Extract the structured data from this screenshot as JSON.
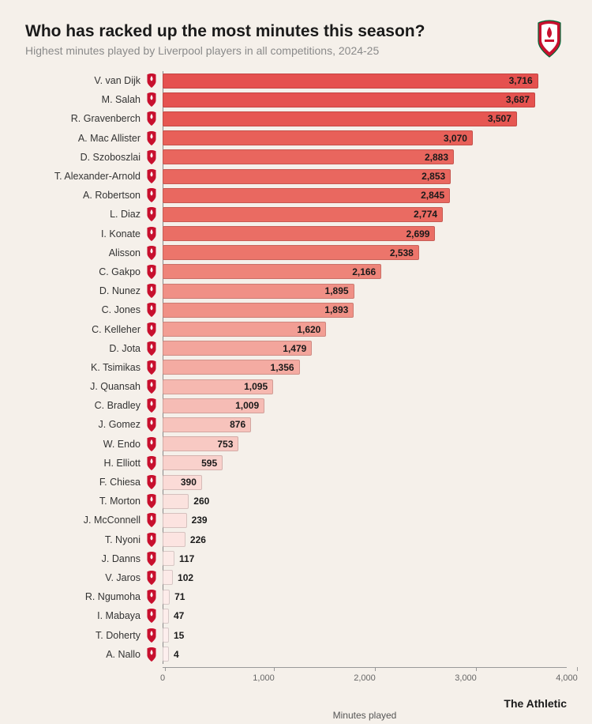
{
  "title": "Who has racked up the most minutes this season?",
  "subtitle": "Highest minutes played by Liverpool players in all competitions, 2024-25",
  "source": "The Athletic",
  "chart": {
    "type": "bar",
    "x_label": "Minutes played",
    "xlim": [
      0,
      4000
    ],
    "ticks": [
      0,
      1000,
      2000,
      3000,
      4000
    ],
    "tick_labels": [
      "0",
      "1,000",
      "2,000",
      "3,000",
      "4,000"
    ],
    "bar_border_color": "rgba(0,0,0,0.15)",
    "background_color": "#f5f0ea",
    "label_fontsize": 12.5,
    "value_fontsize": 12,
    "value_inside_threshold": 300,
    "players": [
      {
        "name": "V. van Dijk",
        "minutes": 3716,
        "label": "3,716",
        "color": "#e5514f"
      },
      {
        "name": "M. Salah",
        "minutes": 3687,
        "label": "3,687",
        "color": "#e5524f"
      },
      {
        "name": "R. Gravenberch",
        "minutes": 3507,
        "label": "3,507",
        "color": "#e65752"
      },
      {
        "name": "A. Mac Allister",
        "minutes": 3070,
        "label": "3,070",
        "color": "#e86059"
      },
      {
        "name": "D. Szoboszlai",
        "minutes": 2883,
        "label": "2,883",
        "color": "#e9665e"
      },
      {
        "name": "T. Alexander-Arnold",
        "minutes": 2853,
        "label": "2,853",
        "color": "#e9675f"
      },
      {
        "name": "A. Robertson",
        "minutes": 2845,
        "label": "2,845",
        "color": "#e96860"
      },
      {
        "name": "L. Diaz",
        "minutes": 2774,
        "label": "2,774",
        "color": "#ea6b62"
      },
      {
        "name": "I. Konate",
        "minutes": 2699,
        "label": "2,699",
        "color": "#ea6e65"
      },
      {
        "name": "Alisson",
        "minutes": 2538,
        "label": "2,538",
        "color": "#ec756b"
      },
      {
        "name": "C. Gakpo",
        "minutes": 2166,
        "label": "2,166",
        "color": "#ee8479"
      },
      {
        "name": "D. Nunez",
        "minutes": 1895,
        "label": "1,895",
        "color": "#f09086"
      },
      {
        "name": "C. Jones",
        "minutes": 1893,
        "label": "1,893",
        "color": "#f09186"
      },
      {
        "name": "C. Kelleher",
        "minutes": 1620,
        "label": "1,620",
        "color": "#f29e94"
      },
      {
        "name": "D. Jota",
        "minutes": 1479,
        "label": "1,479",
        "color": "#f3a59c"
      },
      {
        "name": "K. Tsimikas",
        "minutes": 1356,
        "label": "1,356",
        "color": "#f4aba2"
      },
      {
        "name": "J. Quansah",
        "minutes": 1095,
        "label": "1,095",
        "color": "#f6b8b0"
      },
      {
        "name": "C. Bradley",
        "minutes": 1009,
        "label": "1,009",
        "color": "#f6bcb5"
      },
      {
        "name": "J. Gomez",
        "minutes": 876,
        "label": "876",
        "color": "#f7c3bc"
      },
      {
        "name": "W. Endo",
        "minutes": 753,
        "label": "753",
        "color": "#f8c9c3"
      },
      {
        "name": "H. Elliott",
        "minutes": 595,
        "label": "595",
        "color": "#f9d1cc"
      },
      {
        "name": "F. Chiesa",
        "minutes": 390,
        "label": "390",
        "color": "#fbdbd7"
      },
      {
        "name": "T. Morton",
        "minutes": 260,
        "label": "260",
        "color": "#fbe2de"
      },
      {
        "name": "J. McConnell",
        "minutes": 239,
        "label": "239",
        "color": "#fce3e0"
      },
      {
        "name": "T. Nyoni",
        "minutes": 226,
        "label": "226",
        "color": "#fce4e1"
      },
      {
        "name": "J. Danns",
        "minutes": 117,
        "label": "117",
        "color": "#fceae7"
      },
      {
        "name": "V. Jaros",
        "minutes": 102,
        "label": "102",
        "color": "#fceae8"
      },
      {
        "name": "R. Ngumoha",
        "minutes": 71,
        "label": "71",
        "color": "#fdecea"
      },
      {
        "name": "I. Mabaya",
        "minutes": 47,
        "label": "47",
        "color": "#fdedeb"
      },
      {
        "name": "T. Doherty",
        "minutes": 15,
        "label": "15",
        "color": "#fdeeed"
      },
      {
        "name": "A. Nallo",
        "minutes": 4,
        "label": "4",
        "color": "#fdefee"
      }
    ]
  }
}
